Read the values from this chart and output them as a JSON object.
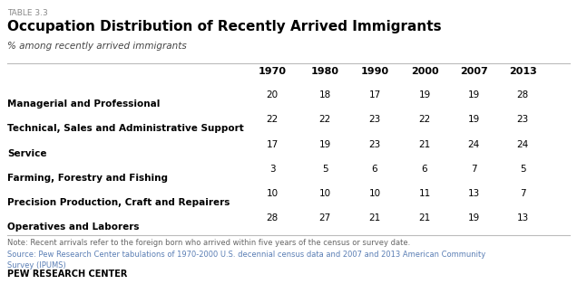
{
  "table_label": "TABLE 3.3",
  "title": "Occupation Distribution of Recently Arrived Immigrants",
  "subtitle": "% among recently arrived immigrants",
  "columns": [
    "1970",
    "1980",
    "1990",
    "2000",
    "2007",
    "2013"
  ],
  "rows": [
    {
      "label": "Managerial and Professional",
      "values": [
        20,
        18,
        17,
        19,
        19,
        28
      ]
    },
    {
      "label": "Technical, Sales and Administrative Support",
      "values": [
        22,
        22,
        23,
        22,
        19,
        23
      ]
    },
    {
      "label": "Service",
      "values": [
        17,
        19,
        23,
        21,
        24,
        24
      ]
    },
    {
      "label": "Farming, Forestry and Fishing",
      "values": [
        3,
        5,
        6,
        6,
        7,
        5
      ]
    },
    {
      "label": "Precision Production, Craft and Repairers",
      "values": [
        10,
        10,
        10,
        11,
        13,
        7
      ]
    },
    {
      "label": "Operatives and Laborers",
      "values": [
        28,
        27,
        21,
        21,
        19,
        13
      ]
    }
  ],
  "note": "Note: Recent arrivals refer to the foreign born who arrived within five years of the census or survey date.",
  "source": "Source: Pew Research Center tabulations of 1970-2000 U.S. decennial census data and 2007 and 2013 American Community\nSurvey (IPUMS)",
  "footer": "PEW RESEARCH CENTER",
  "bg_color": "#ffffff",
  "label_color": "#000000",
  "value_color": "#000000",
  "note_color": "#666666",
  "source_color": "#5b7fb5",
  "footer_color": "#000000",
  "line_color": "#bbbbbb",
  "table_lbl_color": "#888888"
}
